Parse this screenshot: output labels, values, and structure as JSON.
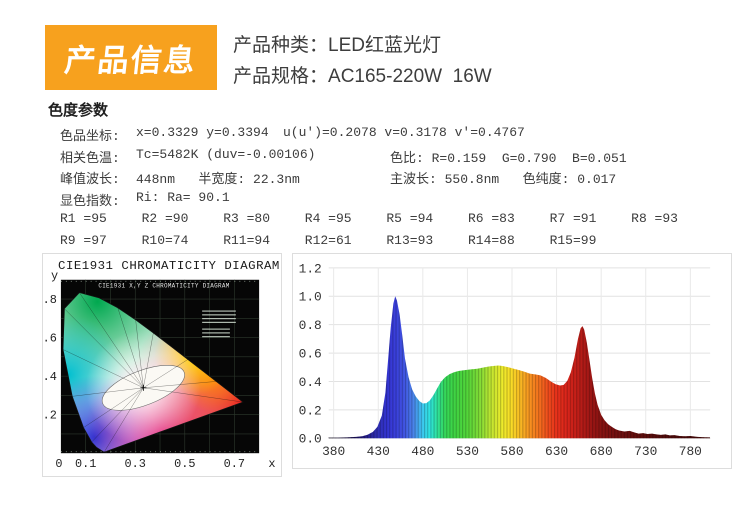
{
  "header": {
    "badge": "产品信息",
    "badge_bg": "#F7A11E",
    "lines": [
      {
        "label": "产品种类：",
        "value": "LED红蓝光灯"
      },
      {
        "label": "产品规格：",
        "value": "AC165-220W  16W"
      }
    ]
  },
  "section_title": "色度参数",
  "params": {
    "rows": [
      {
        "label": "色品坐标:",
        "col1": "x=0.3329 y=0.3394",
        "col2": "u(u')=0.2078 v=0.3178 v'=0.4767"
      },
      {
        "label": "相关色温:",
        "col1": "Tc=5482K (duv=-0.00106)",
        "col2": "色比: R=0.159  G=0.790  B=0.051"
      },
      {
        "label": "峰值波长:",
        "col1": "448nm   半宽度: 22.3nm",
        "col2": "主波长: 550.8nm   色纯度: 0.017"
      },
      {
        "label": "显色指数:",
        "col1": "Ri: Ra= 90.1",
        "col2": ""
      }
    ],
    "cri_rows": [
      [
        "R1 =95",
        "R2 =90",
        "R3 =80",
        "R4 =95",
        "R5 =94",
        "R6 =83",
        "R7 =91",
        "R8 =93"
      ],
      [
        "R9 =97",
        "R10=74",
        "R11=94",
        "R12=61",
        "R13=93",
        "R14=88",
        "R15=99"
      ]
    ]
  },
  "chart_data": [
    {
      "type": "area",
      "name": "cie1931-chromaticity-diagram",
      "title": "CIE1931 CHROMATICITY DIAGRAM",
      "inner_title": "CIE1931 X,Y Z CHROMATICITY DIAGRAM",
      "xlabel": "x",
      "ylabel": "y",
      "xticks": [
        "0",
        "0.1",
        "0.3",
        "0.5",
        "0.7"
      ],
      "xtick_vals": [
        0,
        0.1,
        0.3,
        0.5,
        0.7
      ],
      "yticks": [
        ".2",
        ".4",
        ".6",
        ".8"
      ],
      "ytick_vals": [
        0.2,
        0.4,
        0.6,
        0.8
      ],
      "xlim": [
        0,
        0.8
      ],
      "ylim": [
        0,
        0.9
      ],
      "grid": true,
      "white_point": [
        0.3329,
        0.3394
      ],
      "locus": [
        [
          0.1741,
          0.005
        ],
        [
          0.144,
          0.0297
        ],
        [
          0.1241,
          0.0578
        ],
        [
          0.0913,
          0.1327
        ],
        [
          0.0454,
          0.295
        ],
        [
          0.0082,
          0.5384
        ],
        [
          0.0139,
          0.7502
        ],
        [
          0.0743,
          0.8338
        ],
        [
          0.1547,
          0.8059
        ],
        [
          0.2296,
          0.7543
        ],
        [
          0.3016,
          0.6923
        ],
        [
          0.3731,
          0.6245
        ],
        [
          0.4441,
          0.5547
        ],
        [
          0.5125,
          0.4866
        ],
        [
          0.5752,
          0.4242
        ],
        [
          0.627,
          0.3725
        ],
        [
          0.6915,
          0.3083
        ],
        [
          0.7347,
          0.2653
        ]
      ],
      "colors": {
        "background": "#060606",
        "grid": "#2e392e",
        "green": "#00a84f",
        "cyan": "#00bfcf",
        "blue": "#2336d6",
        "magenta": "#dc1390",
        "red": "#e8221c",
        "orange": "#ff8800",
        "yellow": "#ffd900"
      }
    },
    {
      "type": "area",
      "name": "spectral-power-distribution",
      "title": "",
      "xlabel": "",
      "ylabel": "",
      "xticks": [
        380,
        430,
        480,
        530,
        580,
        630,
        680,
        730,
        780
      ],
      "yticks": [
        "0.0",
        "0.2",
        "0.4",
        "0.6",
        "0.8",
        "1.0",
        "1.2"
      ],
      "xlim": [
        374,
        802
      ],
      "ylim": [
        0,
        1.2
      ],
      "grid": true,
      "peak_blue_nm": 448,
      "peak_red_nm": 659,
      "x": [
        374,
        385,
        395,
        405,
        412,
        418,
        424,
        429,
        434,
        438,
        441,
        444,
        447,
        449,
        451,
        454,
        457,
        460,
        464,
        468,
        472,
        476,
        480,
        484,
        488,
        492,
        496,
        500,
        505,
        510,
        515,
        520,
        527,
        534,
        541,
        548,
        554,
        560,
        565,
        570,
        576,
        582,
        588,
        594,
        600,
        606,
        612,
        618,
        624,
        629,
        634,
        638,
        642,
        646,
        650,
        654,
        657,
        659,
        661,
        664,
        667,
        670,
        673,
        676,
        680,
        684,
        688,
        692,
        696,
        700,
        706,
        712,
        717,
        722,
        727,
        732,
        737,
        742,
        747,
        752,
        757,
        762,
        768,
        774,
        780,
        788,
        796,
        802
      ],
      "y": [
        0.004,
        0.005,
        0.006,
        0.01,
        0.015,
        0.025,
        0.045,
        0.08,
        0.16,
        0.32,
        0.55,
        0.78,
        0.95,
        1.0,
        0.97,
        0.87,
        0.72,
        0.56,
        0.43,
        0.345,
        0.295,
        0.262,
        0.245,
        0.248,
        0.268,
        0.305,
        0.35,
        0.395,
        0.43,
        0.452,
        0.465,
        0.474,
        0.48,
        0.485,
        0.49,
        0.498,
        0.505,
        0.51,
        0.512,
        0.508,
        0.5,
        0.49,
        0.48,
        0.468,
        0.455,
        0.45,
        0.443,
        0.425,
        0.398,
        0.38,
        0.372,
        0.376,
        0.405,
        0.465,
        0.565,
        0.7,
        0.775,
        0.79,
        0.765,
        0.67,
        0.545,
        0.42,
        0.315,
        0.235,
        0.165,
        0.125,
        0.098,
        0.08,
        0.065,
        0.055,
        0.048,
        0.052,
        0.042,
        0.033,
        0.036,
        0.03,
        0.033,
        0.028,
        0.024,
        0.027,
        0.02,
        0.022,
        0.016,
        0.014,
        0.016,
        0.01,
        0.008,
        0.006
      ],
      "wavelength_colors": [
        {
          "nm": 374,
          "color": "#070010"
        },
        {
          "nm": 400,
          "color": "#140a45"
        },
        {
          "nm": 415,
          "color": "#221a80"
        },
        {
          "nm": 430,
          "color": "#2f2fb4"
        },
        {
          "nm": 440,
          "color": "#3333cf"
        },
        {
          "nm": 450,
          "color": "#3a3fdb"
        },
        {
          "nm": 460,
          "color": "#4156e2"
        },
        {
          "nm": 470,
          "color": "#4a85ea"
        },
        {
          "nm": 480,
          "color": "#3cc8f0"
        },
        {
          "nm": 488,
          "color": "#2fe3df"
        },
        {
          "nm": 495,
          "color": "#2fe3a8"
        },
        {
          "nm": 505,
          "color": "#35d75a"
        },
        {
          "nm": 515,
          "color": "#3ed344"
        },
        {
          "nm": 530,
          "color": "#52d53a"
        },
        {
          "nm": 545,
          "color": "#85dd36"
        },
        {
          "nm": 558,
          "color": "#c6e630"
        },
        {
          "nm": 570,
          "color": "#eeea2b"
        },
        {
          "nm": 580,
          "color": "#f8da27"
        },
        {
          "nm": 590,
          "color": "#f8b723"
        },
        {
          "nm": 600,
          "color": "#f69220"
        },
        {
          "nm": 610,
          "color": "#f4731e"
        },
        {
          "nm": 620,
          "color": "#ef4f1d"
        },
        {
          "nm": 630,
          "color": "#e8321b"
        },
        {
          "nm": 640,
          "color": "#db261b"
        },
        {
          "nm": 650,
          "color": "#c92019"
        },
        {
          "nm": 660,
          "color": "#b21b17"
        },
        {
          "nm": 670,
          "color": "#9b1614"
        },
        {
          "nm": 680,
          "color": "#891311"
        },
        {
          "nm": 695,
          "color": "#761010"
        },
        {
          "nm": 710,
          "color": "#680e0e"
        },
        {
          "nm": 730,
          "color": "#5a0c0b"
        },
        {
          "nm": 760,
          "color": "#4c0a0a"
        },
        {
          "nm": 802,
          "color": "#400808"
        }
      ]
    }
  ]
}
